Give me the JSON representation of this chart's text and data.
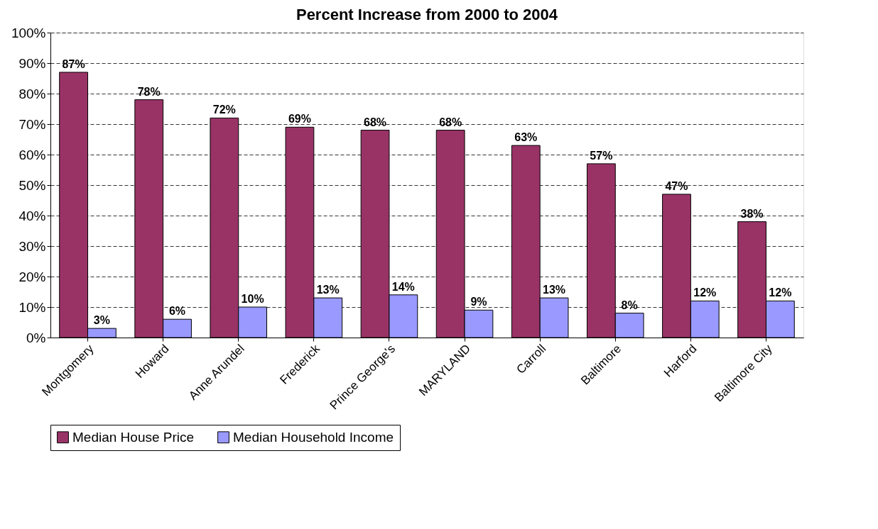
{
  "chart_data": {
    "type": "bar",
    "title": "Percent Increase from 2000 to 2004",
    "categories": [
      "Montgomery",
      "Howard",
      "Anne Arundel",
      "Frederick",
      "Prince George's",
      "MARYLAND",
      "Carroll",
      "Baltimore",
      "Harford",
      "Baltimore City"
    ],
    "series": [
      {
        "name": "Median House Price",
        "color": "#993366",
        "values": [
          87,
          78,
          72,
          69,
          68,
          68,
          63,
          57,
          47,
          38
        ],
        "value_labels": [
          "87%",
          "78%",
          "72%",
          "69%",
          "68%",
          "68%",
          "63%",
          "57%",
          "47%",
          "38%"
        ]
      },
      {
        "name": "Median Household Income",
        "color": "#9999ff",
        "values": [
          3,
          6,
          10,
          13,
          14,
          9,
          13,
          8,
          12,
          12
        ],
        "value_labels": [
          "3%",
          "6%",
          "10%",
          "13%",
          "14%",
          "9%",
          "13%",
          "8%",
          "12%",
          "12%"
        ]
      }
    ],
    "ylim": [
      0,
      100
    ],
    "yticks": [
      {
        "value": 0,
        "label": "0%"
      },
      {
        "value": 10,
        "label": "10%"
      },
      {
        "value": 20,
        "label": "20%"
      },
      {
        "value": 30,
        "label": "30%"
      },
      {
        "value": 40,
        "label": "40%"
      },
      {
        "value": 50,
        "label": "50%"
      },
      {
        "value": 60,
        "label": "60%"
      },
      {
        "value": 70,
        "label": "70%"
      },
      {
        "value": 80,
        "label": "80%"
      },
      {
        "value": 90,
        "label": "90%"
      },
      {
        "value": 100,
        "label": "100%"
      }
    ],
    "grid": "y",
    "legend": "bottom"
  }
}
